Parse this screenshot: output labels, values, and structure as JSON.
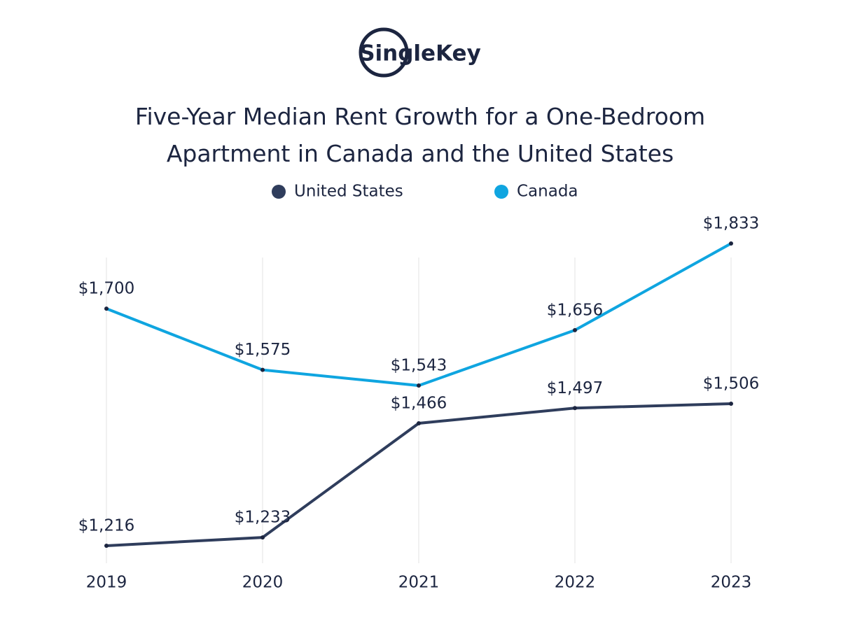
{
  "logo": "SingleKey",
  "chart_data": {
    "type": "line",
    "title": "Five-Year Median Rent Growth for a One-Bedroom Apartment in Canada and the United States",
    "categories": [
      "2019",
      "2020",
      "2021",
      "2022",
      "2023"
    ],
    "grid": true,
    "series": [
      {
        "name": "United States",
        "color": "#2f3d5c",
        "values": [
          1216,
          1233,
          1466,
          1497,
          1506
        ],
        "value_labels": [
          "$1,216",
          "$1,233",
          "$1,466",
          "$1,497",
          "$1,506"
        ]
      },
      {
        "name": "Canada",
        "color": "#0fa5e0",
        "values": [
          1700,
          1575,
          1543,
          1656,
          1833
        ],
        "value_labels": [
          "$1,700",
          "$1,575",
          "$1,543",
          "$1,656",
          "$1,833"
        ]
      }
    ]
  }
}
